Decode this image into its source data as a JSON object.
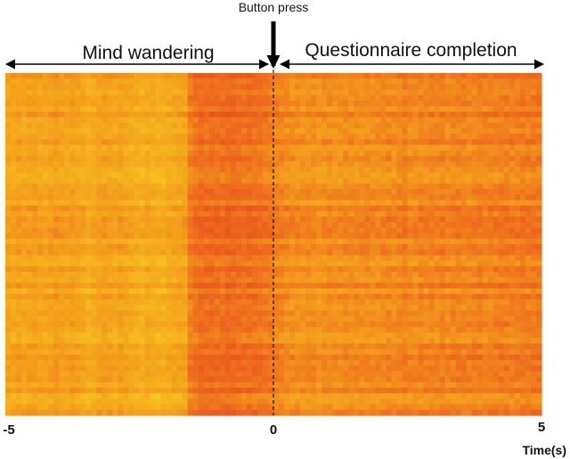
{
  "chart_data": {
    "type": "heatmap",
    "title": "",
    "xlabel": "Time(s)",
    "ylabel": "",
    "x_ticks": [
      "-5",
      "0",
      "5"
    ],
    "xlim": [
      -5,
      5
    ],
    "event": {
      "label": "Button press",
      "time": 0
    },
    "segments": [
      {
        "label": "Mind wandering",
        "from": -5,
        "to": 0
      },
      {
        "label": "Questionnaire completion",
        "from": 0,
        "to": 5
      }
    ],
    "colormap": [
      "#f5e22a",
      "#f6b81e",
      "#f39a1d",
      "#ee6a1e",
      "#e24a1a"
    ],
    "grid": false,
    "legend": "none",
    "n_rows": 62,
    "n_cols": 100,
    "value_range": [
      0,
      1
    ],
    "column_profile": [
      0.42,
      0.4,
      0.44,
      0.41,
      0.43,
      0.45,
      0.42,
      0.4,
      0.44,
      0.46,
      0.43,
      0.41,
      0.45,
      0.42,
      0.4,
      0.35,
      0.38,
      0.43,
      0.45,
      0.42,
      0.4,
      0.44,
      0.41,
      0.37,
      0.35,
      0.33,
      0.38,
      0.36,
      0.34,
      0.32,
      0.36,
      0.39,
      0.41,
      0.43,
      0.66,
      0.7,
      0.74,
      0.73,
      0.75,
      0.74,
      0.72,
      0.76,
      0.75,
      0.73,
      0.71,
      0.74,
      0.72,
      0.7,
      0.68,
      0.66,
      0.62,
      0.6,
      0.58,
      0.56,
      0.55,
      0.54,
      0.56,
      0.55,
      0.53,
      0.55,
      0.56,
      0.54,
      0.55,
      0.57,
      0.56,
      0.55,
      0.57,
      0.58,
      0.56,
      0.57,
      0.58,
      0.6,
      0.57,
      0.59,
      0.63,
      0.58,
      0.57,
      0.6,
      0.59,
      0.61,
      0.6,
      0.62,
      0.59,
      0.61,
      0.63,
      0.61,
      0.6,
      0.62,
      0.64,
      0.62,
      0.61,
      0.63,
      0.64,
      0.65,
      0.63,
      0.64,
      0.66,
      0.65,
      0.66,
      0.67
    ]
  }
}
